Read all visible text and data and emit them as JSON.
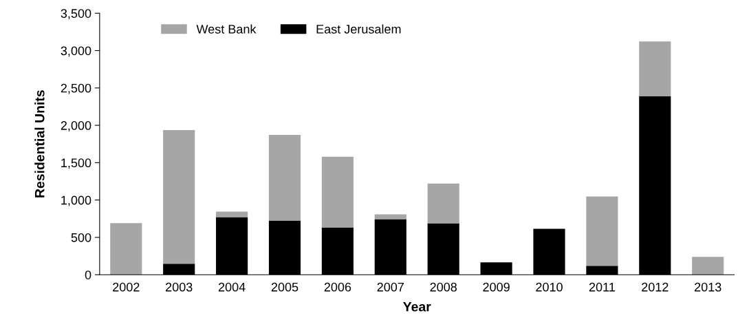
{
  "chart_data": {
    "type": "bar",
    "stacked": true,
    "xlabel": "Year",
    "ylabel": "Residential Units",
    "categories": [
      "2002",
      "2003",
      "2004",
      "2005",
      "2006",
      "2007",
      "2008",
      "2009",
      "2010",
      "2011",
      "2012",
      "2013"
    ],
    "series": [
      {
        "name": "East Jerusalem",
        "color": "#000000",
        "values": [
          0,
          147,
          771,
          725,
          634,
          744,
          689,
          165,
          615,
          119,
          2388,
          0
        ]
      },
      {
        "name": "West Bank",
        "color": "#a6a6a6",
        "values": [
          690,
          1790,
          74,
          1148,
          945,
          64,
          532,
          0,
          0,
          928,
          734,
          240
        ]
      }
    ],
    "ylim": [
      0,
      3500
    ],
    "yticks": [
      {
        "value": 0,
        "label": "0"
      },
      {
        "value": 500,
        "label": "500"
      },
      {
        "value": 1000,
        "label": "1,000"
      },
      {
        "value": 1500,
        "label": "1,500"
      },
      {
        "value": 2000,
        "label": "2,000"
      },
      {
        "value": 2500,
        "label": "2,500"
      },
      {
        "value": 3000,
        "label": "3,000"
      },
      {
        "value": 3500,
        "label": "3,500"
      }
    ],
    "grid": false,
    "legend": "top left"
  }
}
